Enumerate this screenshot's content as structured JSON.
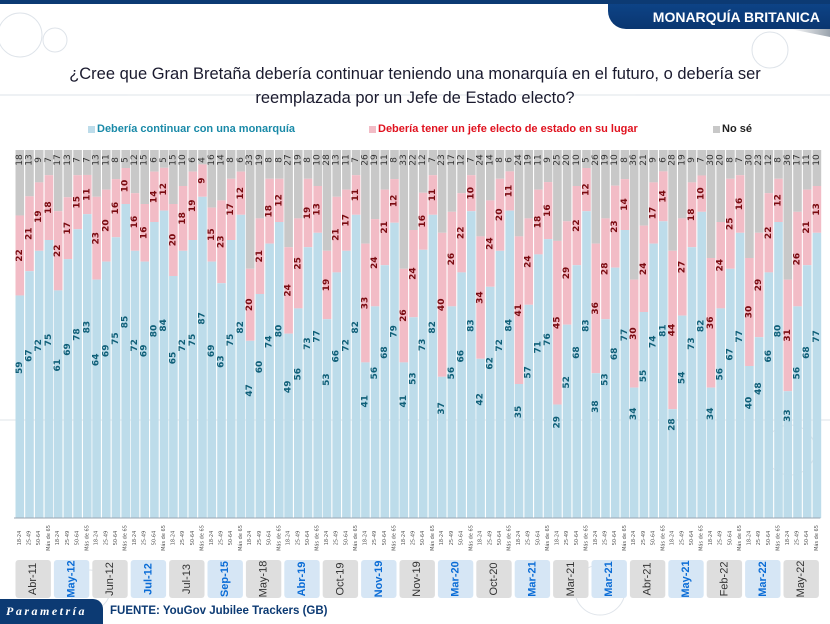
{
  "header": {
    "section_title": "MONARQUÍA BRITANICA",
    "question": "¿Cree que Gran Bretaña debería continuar teniendo una monarquía en el futuro, o debería ser reemplazada por un Jefe de Estado electo?"
  },
  "footer": {
    "logo": "Parametría",
    "source": "FUENTE: YouGov Jubilee Trackers (GB)"
  },
  "colors": {
    "monarchy": "#bddcea",
    "elected": "#f2bcc6",
    "dont_know": "#c8c8c8",
    "monarchy_text": "#0f5f78",
    "elected_text": "#7a0a10",
    "dont_know_text": "#333333",
    "legend_monarchy": "#1a8aa8",
    "legend_elected": "#e0121f",
    "legend_dont_know": "#222222",
    "highlight_date": "#0a6cd6",
    "plain_date": "#333333",
    "brand": "#0c3a73"
  },
  "chart_data": {
    "type": "bar",
    "stacked": true,
    "orientation": "vertical",
    "ylim": [
      0,
      100
    ],
    "title": "¿Cree que Gran Bretaña debería continuar teniendo una monarquía en el futuro, o debería ser reemplazada por un Jefe de Estado electo?",
    "legend_position": "top",
    "legend": [
      "Debería continuar con una monarquía",
      "Debería tener un jefe electo de estado en su lugar",
      "No sé"
    ],
    "age_groups": [
      "18-24",
      "25-49",
      "50-64",
      "Más de 65"
    ],
    "groups": [
      {
        "label": "Abr-11",
        "highlight": false,
        "monarchy": [
          59,
          67,
          72,
          75
        ],
        "elected": [
          22,
          21,
          19,
          18
        ],
        "dont_know": [
          18,
          13,
          9,
          7
        ]
      },
      {
        "label": "May-12",
        "highlight": true,
        "monarchy": [
          61,
          69,
          78,
          83
        ],
        "elected": [
          22,
          17,
          15,
          11
        ],
        "dont_know": [
          17,
          13,
          7,
          7
        ]
      },
      {
        "label": "Jun-12",
        "highlight": false,
        "monarchy": [
          64,
          69,
          75,
          85
        ],
        "elected": [
          23,
          20,
          16,
          10
        ],
        "dont_know": [
          13,
          11,
          8,
          5
        ]
      },
      {
        "label": "Jul-12",
        "highlight": true,
        "monarchy": [
          72,
          69,
          80,
          84
        ],
        "elected": [
          16,
          16,
          14,
          12
        ],
        "dont_know": [
          12,
          15,
          6,
          5
        ]
      },
      {
        "label": "Jul-13",
        "highlight": false,
        "monarchy": [
          65,
          72,
          75,
          87
        ],
        "elected": [
          20,
          18,
          19,
          9
        ],
        "dont_know": [
          15,
          10,
          6,
          4
        ]
      },
      {
        "label": "Sep-15",
        "highlight": true,
        "monarchy": [
          69,
          63,
          75,
          82
        ],
        "elected": [
          15,
          23,
          17,
          12
        ],
        "dont_know": [
          16,
          14,
          8,
          6
        ]
      },
      {
        "label": "May-18",
        "highlight": false,
        "monarchy": [
          47,
          60,
          74,
          80
        ],
        "elected": [
          20,
          21,
          18,
          12
        ],
        "dont_know": [
          33,
          19,
          8,
          8
        ]
      },
      {
        "label": "Abr-19",
        "highlight": true,
        "monarchy": [
          49,
          56,
          73,
          77
        ],
        "elected": [
          24,
          25,
          19,
          13
        ],
        "dont_know": [
          27,
          19,
          8,
          10
        ]
      },
      {
        "label": "Oct-19",
        "highlight": false,
        "monarchy": [
          53,
          66,
          72,
          82
        ],
        "elected": [
          19,
          21,
          17,
          11
        ],
        "dont_know": [
          28,
          13,
          11,
          7
        ]
      },
      {
        "label": "Nov-19",
        "highlight": true,
        "monarchy": [
          41,
          56,
          68,
          79
        ],
        "elected": [
          33,
          24,
          21,
          12
        ],
        "dont_know": [
          26,
          19,
          11,
          8
        ]
      },
      {
        "label": "Nov-19",
        "highlight": false,
        "monarchy": [
          41,
          53,
          73,
          82
        ],
        "elected": [
          26,
          24,
          16,
          11
        ],
        "dont_know": [
          33,
          22,
          12,
          7
        ]
      },
      {
        "label": "Mar-20",
        "highlight": true,
        "monarchy": [
          37,
          56,
          66,
          83
        ],
        "elected": [
          40,
          26,
          22,
          10
        ],
        "dont_know": [
          23,
          17,
          12,
          7
        ]
      },
      {
        "label": "Oct-20",
        "highlight": false,
        "monarchy": [
          42,
          62,
          72,
          84
        ],
        "elected": [
          34,
          24,
          20,
          11
        ],
        "dont_know": [
          24,
          14,
          8,
          6
        ]
      },
      {
        "label": "Mar-21",
        "highlight": true,
        "monarchy": [
          35,
          57,
          71,
          76
        ],
        "elected": [
          41,
          24,
          18,
          16
        ],
        "dont_know": [
          24,
          19,
          11,
          9
        ]
      },
      {
        "label": "Mar-21",
        "highlight": false,
        "monarchy": [
          29,
          52,
          68,
          83
        ],
        "elected": [
          45,
          29,
          22,
          12
        ],
        "dont_know": [
          25,
          20,
          10,
          5
        ]
      },
      {
        "label": "Mar-21",
        "highlight": true,
        "monarchy": [
          38,
          53,
          68,
          77
        ],
        "elected": [
          36,
          28,
          23,
          14
        ],
        "dont_know": [
          26,
          19,
          10,
          8
        ]
      },
      {
        "label": "Abr-21",
        "highlight": false,
        "monarchy": [
          34,
          55,
          74,
          81
        ],
        "elected": [
          30,
          24,
          17,
          14
        ],
        "dont_know": [
          36,
          21,
          9,
          6
        ]
      },
      {
        "label": "May-21",
        "highlight": true,
        "monarchy": [
          28,
          54,
          73,
          82
        ],
        "elected": [
          44,
          27,
          18,
          10
        ],
        "dont_know": [
          28,
          19,
          9,
          7
        ]
      },
      {
        "label": "Feb-22",
        "highlight": false,
        "monarchy": [
          34,
          56,
          67,
          77
        ],
        "elected": [
          36,
          24,
          25,
          16
        ],
        "dont_know": [
          30,
          20,
          8,
          7
        ]
      },
      {
        "label": "Mar-22",
        "highlight": true,
        "monarchy": [
          40,
          48,
          66,
          80
        ],
        "elected": [
          30,
          29,
          22,
          12
        ],
        "dont_know": [
          30,
          23,
          12,
          8
        ]
      },
      {
        "label": "May-22",
        "highlight": false,
        "monarchy": [
          33,
          56,
          68,
          77
        ],
        "elected": [
          31,
          26,
          21,
          13
        ],
        "dont_know": [
          36,
          17,
          11,
          10
        ]
      }
    ]
  }
}
